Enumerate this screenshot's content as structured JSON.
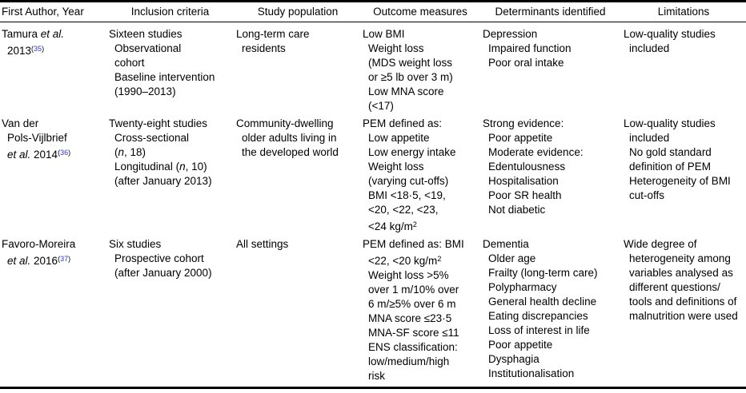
{
  "colors": {
    "text": "#000000",
    "reference_link": "#3333cc",
    "rule": "#000000",
    "background": "#ffffff"
  },
  "table": {
    "columns": [
      {
        "key": "first-author-year",
        "label": "First Author, Year"
      },
      {
        "key": "inclusion-criteria",
        "label": "Inclusion criteria"
      },
      {
        "key": "study-population",
        "label": "Study population"
      },
      {
        "key": "outcome-measures",
        "label": "Outcome measures"
      },
      {
        "key": "determinants-identified",
        "label": "Determinants identified"
      },
      {
        "key": "limitations",
        "label": "Limitations"
      }
    ],
    "rows": [
      {
        "cells": [
          [
            {
              "in": 0,
              "r": [
                {
                  "t": "Tamura "
                },
                {
                  "t": "et al.",
                  "i": true
                }
              ]
            },
            {
              "in": 1,
              "r": [
                {
                  "t": "2013"
                },
                {
                  "t": "(",
                  "s": true
                },
                {
                  "t": "35",
                  "s": true,
                  "ref": true
                },
                {
                  "t": ")",
                  "s": true
                }
              ]
            }
          ],
          [
            {
              "in": 0,
              "t": "Sixteen studies"
            },
            {
              "in": 1,
              "t": "Observational"
            },
            {
              "in": 1,
              "t": "cohort"
            },
            {
              "in": 1,
              "t": "Baseline intervention"
            },
            {
              "in": 1,
              "t": "(1990–2013)"
            }
          ],
          [
            {
              "in": 0,
              "t": "Long-term care"
            },
            {
              "in": 1,
              "t": "residents"
            }
          ],
          [
            {
              "in": 0,
              "t": "Low BMI"
            },
            {
              "in": 1,
              "t": "Weight loss"
            },
            {
              "in": 1,
              "t": "(MDS weight loss"
            },
            {
              "in": 1,
              "t": "or ≥5 lb over 3 m)"
            },
            {
              "in": 1,
              "t": "Low MNA score"
            },
            {
              "in": 1,
              "t": "(<17)"
            }
          ],
          [
            {
              "in": 0,
              "t": "Depression"
            },
            {
              "in": 1,
              "t": "Impaired function"
            },
            {
              "in": 1,
              "t": "Poor oral intake"
            }
          ],
          [
            {
              "in": 0,
              "t": "Low-quality studies"
            },
            {
              "in": 1,
              "t": "included"
            }
          ]
        ]
      },
      {
        "cells": [
          [
            {
              "in": 0,
              "t": "Van der"
            },
            {
              "in": 1,
              "t": "Pols-Vijlbrief"
            },
            {
              "in": 1,
              "r": [
                {
                  "t": "et al.",
                  "i": true
                },
                {
                  "t": " 2014"
                },
                {
                  "t": "(",
                  "s": true
                },
                {
                  "t": "36",
                  "s": true,
                  "ref": true
                },
                {
                  "t": ")",
                  "s": true
                }
              ]
            }
          ],
          [
            {
              "in": 0,
              "t": "Twenty-eight studies"
            },
            {
              "in": 1,
              "t": "Cross-sectional"
            },
            {
              "in": 1,
              "r": [
                {
                  "t": "("
                },
                {
                  "t": "n",
                  "i": true
                },
                {
                  "t": ", 18)"
                }
              ]
            },
            {
              "in": 1,
              "r": [
                {
                  "t": "Longitudinal ("
                },
                {
                  "t": "n",
                  "i": true
                },
                {
                  "t": ", 10)"
                }
              ]
            },
            {
              "in": 1,
              "t": "(after January 2013)"
            }
          ],
          [
            {
              "in": 0,
              "t": "Community-dwelling"
            },
            {
              "in": 1,
              "t": "older adults living in"
            },
            {
              "in": 1,
              "t": "the developed world"
            }
          ],
          [
            {
              "in": 0,
              "t": "PEM defined as:"
            },
            {
              "in": 1,
              "t": "Low appetite"
            },
            {
              "in": 1,
              "t": "Low energy intake"
            },
            {
              "in": 1,
              "t": "Weight loss"
            },
            {
              "in": 1,
              "t": "(varying cut-offs)"
            },
            {
              "in": 1,
              "t": "BMI <18·5, <19,"
            },
            {
              "in": 1,
              "t": "<20, <22, <23,"
            },
            {
              "in": 1,
              "r": [
                {
                  "t": "<24 kg/m"
                },
                {
                  "t": "2",
                  "s": true
                }
              ]
            }
          ],
          [
            {
              "in": 0,
              "t": "Strong evidence:"
            },
            {
              "in": 1,
              "t": "Poor appetite"
            },
            {
              "in": 1,
              "t": "Moderate evidence:"
            },
            {
              "in": 1,
              "t": "Edentulousness"
            },
            {
              "in": 1,
              "t": "Hospitalisation"
            },
            {
              "in": 1,
              "t": "Poor SR health"
            },
            {
              "in": 1,
              "t": "Not diabetic"
            }
          ],
          [
            {
              "in": 0,
              "t": "Low-quality studies"
            },
            {
              "in": 1,
              "t": "included"
            },
            {
              "in": 1,
              "t": "No gold standard"
            },
            {
              "in": 1,
              "t": "definition of PEM"
            },
            {
              "in": 1,
              "t": "Heterogeneity of BMI"
            },
            {
              "in": 1,
              "t": "cut-offs"
            }
          ]
        ]
      },
      {
        "cells": [
          [
            {
              "in": 0,
              "t": "Favoro-Moreira"
            },
            {
              "in": 1,
              "r": [
                {
                  "t": "et al.",
                  "i": true
                },
                {
                  "t": " 2016"
                },
                {
                  "t": "(",
                  "s": true
                },
                {
                  "t": "37",
                  "s": true,
                  "ref": true
                },
                {
                  "t": ")",
                  "s": true
                }
              ]
            }
          ],
          [
            {
              "in": 0,
              "t": "Six studies"
            },
            {
              "in": 1,
              "t": "Prospective cohort"
            },
            {
              "in": 1,
              "t": "(after January 2000)"
            }
          ],
          [
            {
              "in": 0,
              "t": "All settings"
            }
          ],
          [
            {
              "in": 0,
              "t": "PEM defined as: BMI"
            },
            {
              "in": 1,
              "r": [
                {
                  "t": "<22, <20 kg/m"
                },
                {
                  "t": "2",
                  "s": true
                }
              ]
            },
            {
              "in": 1,
              "t": "Weight loss >5%"
            },
            {
              "in": 1,
              "t": "over 1 m/10% over"
            },
            {
              "in": 1,
              "t": "6 m/≥5% over 6 m"
            },
            {
              "in": 1,
              "t": "MNA score ≤23·5"
            },
            {
              "in": 1,
              "t": "MNA-SF score ≤11"
            },
            {
              "in": 1,
              "t": "ENS classification:"
            },
            {
              "in": 1,
              "t": "low/medium/high"
            },
            {
              "in": 1,
              "t": "risk"
            }
          ],
          [
            {
              "in": 0,
              "t": "Dementia"
            },
            {
              "in": 1,
              "t": "Older age"
            },
            {
              "in": 1,
              "t": "Frailty (long-term care)"
            },
            {
              "in": 1,
              "t": "Polypharmacy"
            },
            {
              "in": 1,
              "t": "General health decline"
            },
            {
              "in": 1,
              "t": "Eating discrepancies"
            },
            {
              "in": 1,
              "t": "Loss of interest in life"
            },
            {
              "in": 1,
              "t": "Poor appetite"
            },
            {
              "in": 1,
              "t": "Dysphagia"
            },
            {
              "in": 1,
              "t": "Institutionalisation"
            }
          ],
          [
            {
              "in": 0,
              "t": "Wide degree of"
            },
            {
              "in": 1,
              "t": "heterogeneity among"
            },
            {
              "in": 1,
              "t": "variables analysed as"
            },
            {
              "in": 1,
              "t": "different questions/"
            },
            {
              "in": 1,
              "t": "tools and definitions of"
            },
            {
              "in": 1,
              "t": "malnutrition were used"
            }
          ]
        ]
      }
    ]
  }
}
